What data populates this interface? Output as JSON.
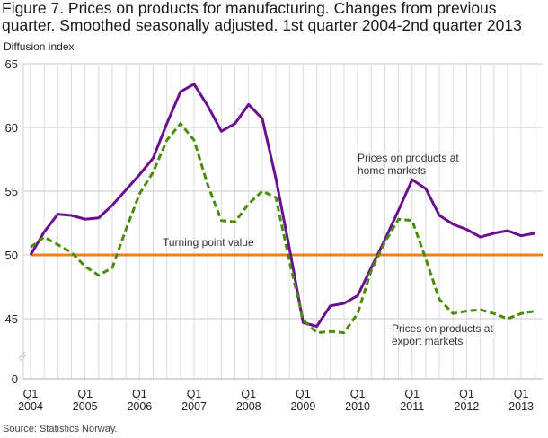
{
  "title": "Figure 7. Prices on products for manufacturing. Changes from previous quarter. Smoothed seasonally adjusted. 1st quarter 2004-2nd quarter 2013",
  "source": "Source: Statistics Norway.",
  "chart_data": {
    "type": "line",
    "title": "Figure 7. Prices on products for manufacturing. Changes from previous quarter. Smoothed seasonally adjusted. 1st quarter 2004-2nd quarter 2013",
    "ylabel": "Diffusion index",
    "xlabel": "",
    "yticks": [
      0,
      45,
      50,
      55,
      60,
      65
    ],
    "ylim": [
      0,
      65
    ],
    "y_axis_break": [
      0,
      45
    ],
    "grid": true,
    "xtick_labels": [
      [
        "Q1",
        "2004"
      ],
      [
        "Q1",
        "2005"
      ],
      [
        "Q1",
        "2006"
      ],
      [
        "Q1",
        "2007"
      ],
      [
        "Q1",
        "2008"
      ],
      [
        "Q1",
        "2009"
      ],
      [
        "Q1",
        "2010"
      ],
      [
        "Q1",
        "2011"
      ],
      [
        "Q1",
        "2012"
      ],
      [
        "Q1",
        "2013"
      ]
    ],
    "x": [
      "2004Q1",
      "2004Q2",
      "2004Q3",
      "2004Q4",
      "2005Q1",
      "2005Q2",
      "2005Q3",
      "2005Q4",
      "2006Q1",
      "2006Q2",
      "2006Q3",
      "2006Q4",
      "2007Q1",
      "2007Q2",
      "2007Q3",
      "2007Q4",
      "2008Q1",
      "2008Q2",
      "2008Q3",
      "2008Q4",
      "2009Q1",
      "2009Q2",
      "2009Q3",
      "2009Q4",
      "2010Q1",
      "2010Q2",
      "2010Q3",
      "2010Q4",
      "2011Q1",
      "2011Q2",
      "2011Q3",
      "2011Q4",
      "2012Q1",
      "2012Q2",
      "2012Q3",
      "2012Q4",
      "2013Q1",
      "2013Q2"
    ],
    "series": [
      {
        "name": "Prices on products at home markets",
        "color": "#6a0f8e",
        "style": "solid",
        "values": [
          50.0,
          51.8,
          53.2,
          53.1,
          52.8,
          52.9,
          53.9,
          55.1,
          56.3,
          57.6,
          60.3,
          62.8,
          63.4,
          61.7,
          59.7,
          60.3,
          61.8,
          60.7,
          56.0,
          50.5,
          44.7,
          44.4,
          46.0,
          46.2,
          46.8,
          49.0,
          51.2,
          53.5,
          55.9,
          55.2,
          53.1,
          52.4,
          52.0,
          51.4,
          51.7,
          51.9,
          51.5,
          51.7
        ]
      },
      {
        "name": "Prices on products at export markets",
        "color": "#4b8b0a",
        "style": "dashed",
        "values": [
          50.6,
          51.4,
          50.8,
          50.2,
          49.1,
          48.4,
          49.0,
          52.0,
          54.8,
          56.5,
          59.0,
          60.3,
          59.0,
          55.5,
          52.7,
          52.6,
          54.0,
          55.0,
          54.5,
          49.5,
          44.9,
          43.9,
          44.0,
          43.9,
          45.4,
          48.8,
          51.0,
          52.8,
          52.7,
          49.7,
          46.5,
          45.4,
          45.6,
          45.7,
          45.4,
          45.0,
          45.4,
          45.6
        ]
      }
    ],
    "reference_line": {
      "label": "Turning point value",
      "value": 50,
      "color": "#f07f1a"
    },
    "annotations": {
      "home": [
        "Prices on products at",
        "home markets"
      ],
      "export": [
        "Prices on products at",
        "export markets"
      ]
    }
  }
}
